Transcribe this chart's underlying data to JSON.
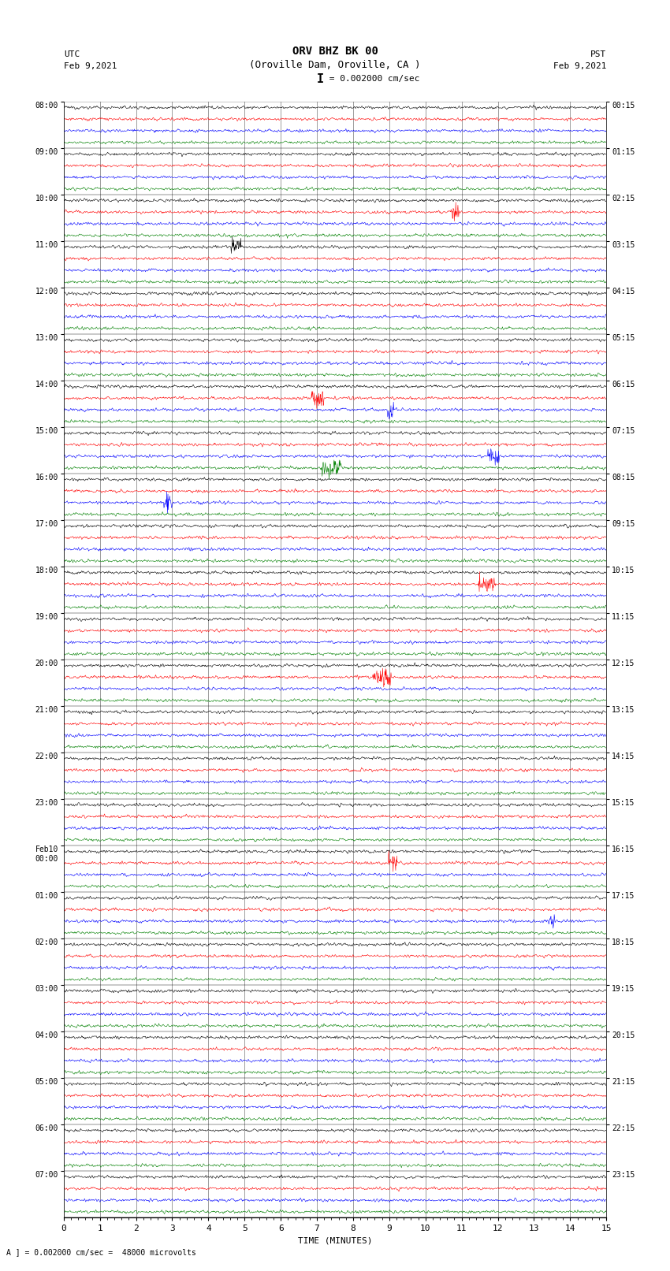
{
  "title_line1": "ORV BHZ BK 00",
  "title_line2": "(Oroville Dam, Oroville, CA )",
  "scale_label": "= 0.002000 cm/sec",
  "footer_label": "A ] = 0.002000 cm/sec =  48000 microvolts",
  "utc_label": "UTC",
  "pst_label": "PST",
  "date_left": "Feb 9,2021",
  "date_right": "Feb 9,2021",
  "xlabel": "TIME (MINUTES)",
  "xlim": [
    0,
    15
  ],
  "xticks": [
    0,
    1,
    2,
    3,
    4,
    5,
    6,
    7,
    8,
    9,
    10,
    11,
    12,
    13,
    14,
    15
  ],
  "bg_color": "#ffffff",
  "trace_colors": [
    "black",
    "red",
    "blue",
    "green"
  ],
  "grid_color": "#888888",
  "figsize": [
    8.5,
    16.13
  ],
  "dpi": 100,
  "left_hour_labels": [
    "08:00",
    "09:00",
    "10:00",
    "11:00",
    "12:00",
    "13:00",
    "14:00",
    "15:00",
    "16:00",
    "17:00",
    "18:00",
    "19:00",
    "20:00",
    "21:00",
    "22:00",
    "23:00",
    "Feb10\n00:00",
    "01:00",
    "02:00",
    "03:00",
    "04:00",
    "05:00",
    "06:00",
    "07:00"
  ],
  "right_hour_labels": [
    "00:15",
    "01:15",
    "02:15",
    "03:15",
    "04:15",
    "05:15",
    "06:15",
    "07:15",
    "08:15",
    "09:15",
    "10:15",
    "11:15",
    "12:15",
    "13:15",
    "14:15",
    "15:15",
    "16:15",
    "17:15",
    "18:15",
    "19:15",
    "20:15",
    "21:15",
    "22:15",
    "23:15"
  ],
  "noise_scale": 0.1,
  "num_points": 1500,
  "traces_per_hour": 4,
  "num_hours": 24
}
